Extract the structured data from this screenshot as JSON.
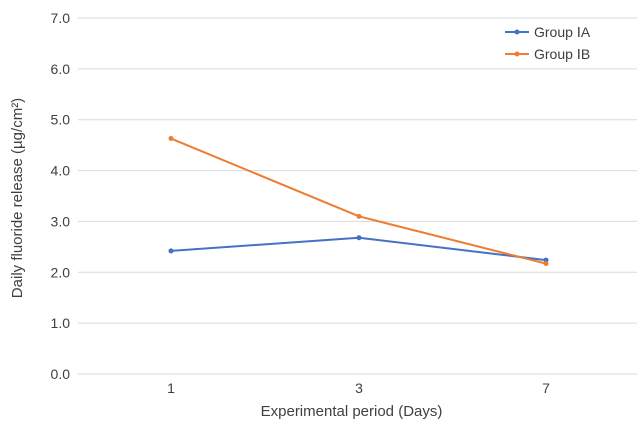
{
  "chart_data": {
    "type": "line",
    "title": "",
    "xlabel": "Experimental period (Days)",
    "ylabel": "Daily fluoride release (µg/cm²)",
    "categories": [
      "1",
      "3",
      "7"
    ],
    "ylim": [
      0,
      7
    ],
    "yticks": [
      "0.0",
      "1.0",
      "2.0",
      "3.0",
      "4.0",
      "5.0",
      "6.0",
      "7.0"
    ],
    "grid": true,
    "legend_position": "top-right",
    "series": [
      {
        "name": "Group ⅠA",
        "values": [
          2.42,
          2.68,
          2.24
        ],
        "color": "#4472c4"
      },
      {
        "name": "Group ⅠB",
        "values": [
          4.63,
          3.1,
          2.17
        ],
        "color": "#ed7d31"
      }
    ]
  }
}
